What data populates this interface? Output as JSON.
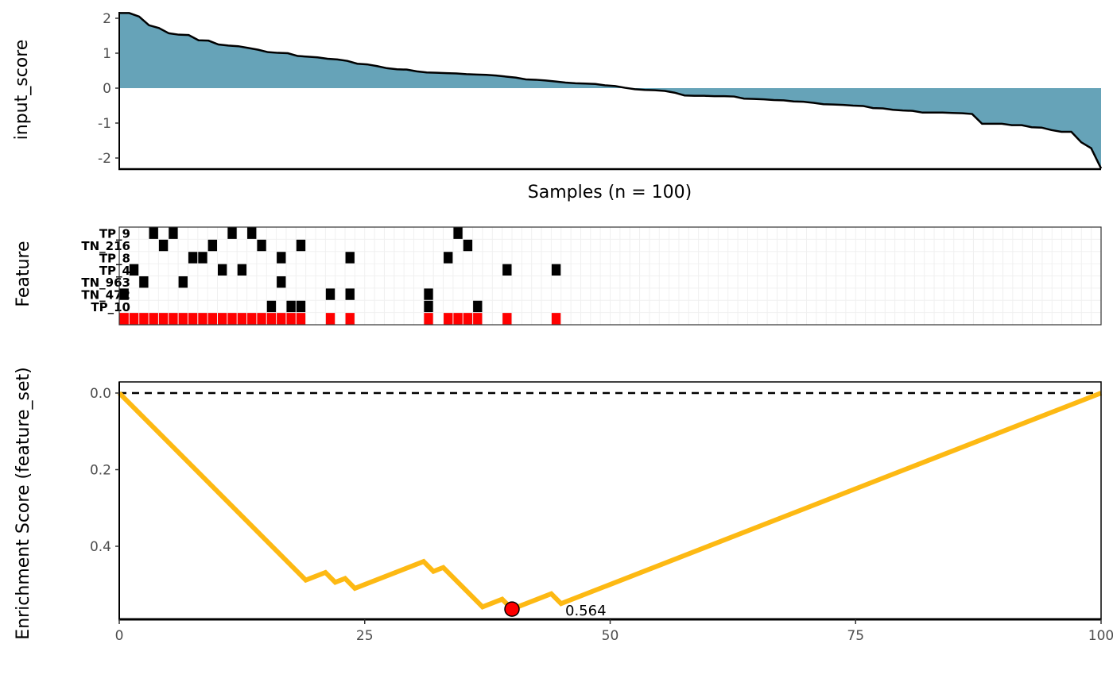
{
  "chart_data": [
    {
      "type": "area",
      "ylabel": "input_score",
      "xlabel": "Samples (n = 100)",
      "ylim": [
        -2.32,
        2.15
      ],
      "yticks": [
        "2",
        "1",
        "0",
        "-1",
        "-2"
      ],
      "ytick_values": [
        2,
        1,
        0,
        -1,
        -2
      ],
      "fill_color": "#66A3B8",
      "line_color": "#000000",
      "values": [
        2.15,
        2.15,
        2.05,
        1.8,
        1.72,
        1.57,
        1.53,
        1.52,
        1.37,
        1.36,
        1.25,
        1.22,
        1.2,
        1.15,
        1.1,
        1.03,
        1.01,
        1.0,
        0.92,
        0.9,
        0.88,
        0.84,
        0.82,
        0.78,
        0.7,
        0.68,
        0.63,
        0.57,
        0.54,
        0.53,
        0.48,
        0.45,
        0.44,
        0.43,
        0.42,
        0.4,
        0.39,
        0.38,
        0.36,
        0.33,
        0.3,
        0.25,
        0.24,
        0.22,
        0.19,
        0.16,
        0.14,
        0.13,
        0.12,
        0.08,
        0.06,
        0.01,
        -0.03,
        -0.05,
        -0.06,
        -0.08,
        -0.13,
        -0.21,
        -0.22,
        -0.22,
        -0.23,
        -0.23,
        -0.24,
        -0.3,
        -0.31,
        -0.32,
        -0.34,
        -0.35,
        -0.38,
        -0.39,
        -0.42,
        -0.46,
        -0.47,
        -0.48,
        -0.5,
        -0.51,
        -0.57,
        -0.58,
        -0.62,
        -0.64,
        -0.65,
        -0.7,
        -0.7,
        -0.7,
        -0.71,
        -0.72,
        -0.74,
        -1.02,
        -1.02,
        -1.02,
        -1.06,
        -1.06,
        -1.12,
        -1.13,
        -1.2,
        -1.25,
        -1.25,
        -1.55,
        -1.72,
        -2.3
      ]
    },
    {
      "type": "heatmap",
      "ylabel": "Feature",
      "n_samples": 100,
      "hit_color": "#000000",
      "set_color": "#FF0000",
      "rows": [
        {
          "label": "TP_9",
          "hits": [
            3,
            5,
            11,
            13,
            34
          ]
        },
        {
          "label": "TN_216",
          "hits": [
            4,
            9,
            14,
            18,
            35
          ]
        },
        {
          "label": "TP_8",
          "hits": [
            7,
            8,
            16,
            23,
            33
          ]
        },
        {
          "label": "TP_4",
          "hits": [
            1,
            10,
            12,
            39,
            44
          ]
        },
        {
          "label": "TN_963",
          "hits": [
            2,
            6,
            16
          ]
        },
        {
          "label": "TN_472",
          "hits": [
            0,
            21,
            23,
            31
          ]
        },
        {
          "label": "TP_10",
          "hits": [
            15,
            17,
            18,
            31,
            36
          ]
        },
        {
          "label": "",
          "hits": [
            0,
            1,
            2,
            3,
            4,
            5,
            6,
            7,
            8,
            9,
            10,
            11,
            12,
            13,
            14,
            15,
            16,
            17,
            18,
            21,
            23,
            31,
            33,
            34,
            35,
            36,
            39,
            44
          ],
          "feature_set": true
        }
      ]
    },
    {
      "type": "line",
      "ylabel": "Enrichment Score (feature_set)",
      "xlim": [
        0,
        100
      ],
      "ylim": [
        -0.03,
        0.59
      ],
      "y_reversed": true,
      "xticks": [
        "0",
        "25",
        "50",
        "75",
        "100"
      ],
      "xtick_values": [
        0,
        25,
        50,
        75,
        100
      ],
      "yticks": [
        "0.0",
        "0.2",
        "0.4"
      ],
      "ytick_values": [
        0,
        0.2,
        0.4
      ],
      "line_color": "#FDB913",
      "reference_line": 0,
      "points": [
        [
          0,
          0
        ],
        [
          19,
          0.4883
        ],
        [
          21,
          0.4683
        ],
        [
          22,
          0.494
        ],
        [
          23,
          0.484
        ],
        [
          24,
          0.5097
        ],
        [
          31,
          0.4397
        ],
        [
          32,
          0.4654
        ],
        [
          33,
          0.4554
        ],
        [
          37,
          0.5582
        ],
        [
          39,
          0.5382
        ],
        [
          40,
          0.5639
        ],
        [
          44,
          0.5239
        ],
        [
          45,
          0.5496
        ],
        [
          100,
          0
        ]
      ],
      "max_point": {
        "x": 40,
        "y": 0.564,
        "label": "0.564",
        "color": "#FF0000"
      }
    }
  ]
}
